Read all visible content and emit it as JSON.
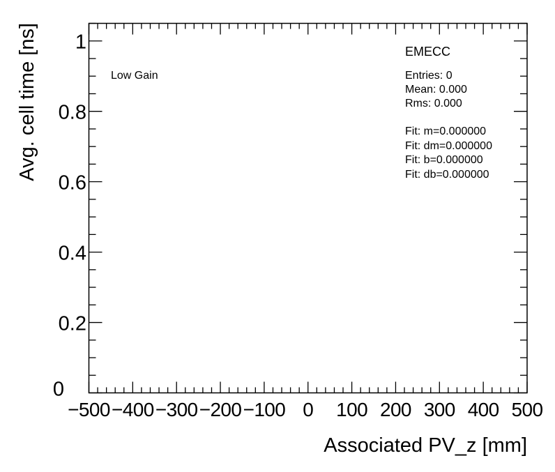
{
  "chart_data": {
    "type": "scatter",
    "title": "",
    "xlabel": "Associated PV_z [mm]",
    "ylabel": "Avg. cell time [ns]",
    "xlim": [
      -500,
      500
    ],
    "ylim": [
      0,
      1.05
    ],
    "x_ticks": [
      -500,
      -400,
      -300,
      -200,
      -100,
      0,
      100,
      200,
      300,
      400,
      500
    ],
    "x_tick_labels": [
      "−500",
      "−400",
      "−300",
      "−200",
      "−100",
      "0",
      "100",
      "200",
      "300",
      "400",
      "500"
    ],
    "y_ticks": [
      0,
      0.2,
      0.4,
      0.6,
      0.8,
      1
    ],
    "y_tick_labels": [
      "0",
      "0.2",
      "0.4",
      "0.6",
      "0.8",
      "1"
    ],
    "x_minor_per_major": 5,
    "y_minor_per_major": 4,
    "grid": false,
    "series": [],
    "annotations": {
      "gain_label": "Low Gain",
      "stats_title": "EMECC",
      "stats_lines": [
        "Entries: 0",
        "Mean: 0.000",
        "Rms: 0.000"
      ],
      "fit_lines": [
        "Fit: m=0.000000",
        "Fit: dm=0.000000",
        "Fit: b=0.000000",
        "Fit: db=0.000000"
      ]
    }
  }
}
